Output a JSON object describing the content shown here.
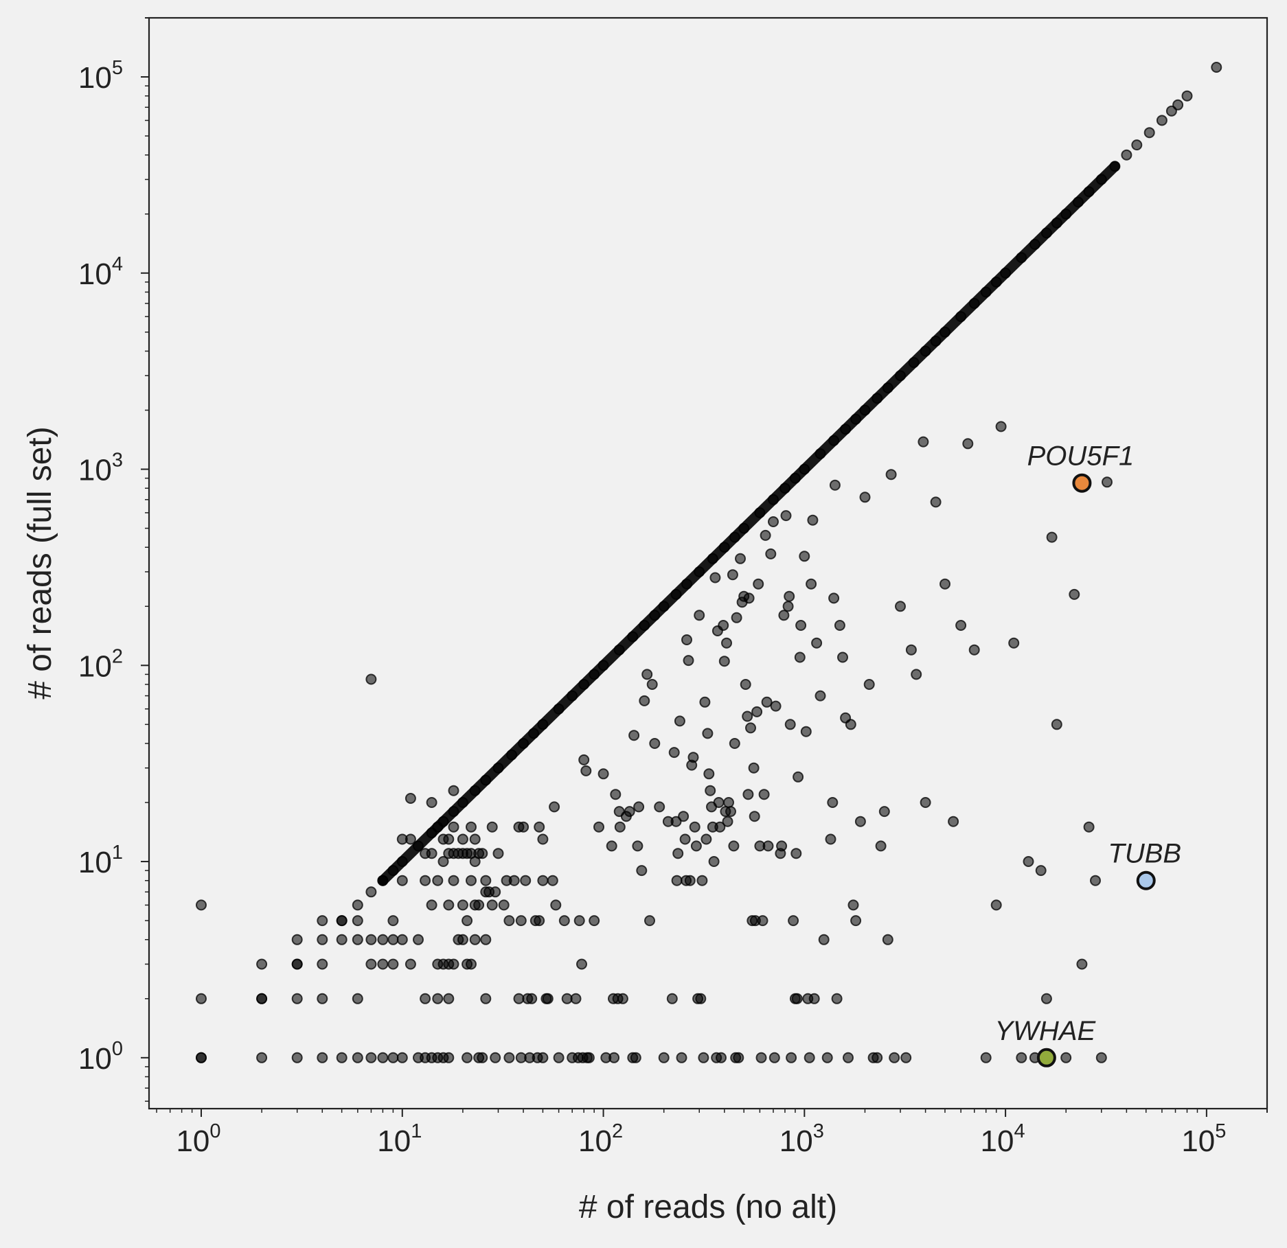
{
  "chart_data": {
    "type": "scatter",
    "title": "",
    "xlabel": "# of reads (no alt)",
    "ylabel": "# of reads (full set)",
    "xscale": "log",
    "yscale": "log",
    "xlim": [
      0.55,
      200000
    ],
    "ylim": [
      0.55,
      200000
    ],
    "grid": false,
    "xticks": [
      {
        "base": "10",
        "exp": "0"
      },
      {
        "base": "10",
        "exp": "1"
      },
      {
        "base": "10",
        "exp": "2"
      },
      {
        "base": "10",
        "exp": "3"
      },
      {
        "base": "10",
        "exp": "4"
      },
      {
        "base": "10",
        "exp": "5"
      }
    ],
    "yticks": [
      {
        "base": "10",
        "exp": "0"
      },
      {
        "base": "10",
        "exp": "1"
      },
      {
        "base": "10",
        "exp": "2"
      },
      {
        "base": "10",
        "exp": "3"
      },
      {
        "base": "10",
        "exp": "4"
      },
      {
        "base": "10",
        "exp": "5"
      }
    ],
    "point_color": "#000000",
    "diagonal_points": [
      [
        1,
        1
      ],
      [
        2,
        2
      ],
      [
        3,
        3
      ],
      [
        4,
        4
      ],
      [
        5,
        5
      ],
      [
        6,
        6
      ],
      [
        7,
        7
      ],
      [
        8,
        8
      ],
      [
        9,
        9
      ],
      [
        10,
        10
      ],
      [
        12,
        12
      ],
      [
        14,
        14
      ],
      [
        16,
        16
      ],
      [
        18,
        18
      ],
      [
        20,
        20
      ],
      [
        23,
        23
      ],
      [
        26,
        26
      ],
      [
        30,
        30
      ],
      [
        35,
        35
      ],
      [
        40,
        40
      ],
      [
        45,
        45
      ],
      [
        50,
        50
      ],
      [
        60,
        60
      ],
      [
        70,
        70
      ],
      [
        80,
        80
      ],
      [
        90,
        90
      ],
      [
        100,
        100
      ],
      [
        120,
        120
      ],
      [
        140,
        140
      ],
      [
        160,
        160
      ],
      [
        180,
        180
      ],
      [
        200,
        200
      ],
      [
        230,
        230
      ],
      [
        260,
        260
      ],
      [
        300,
        300
      ],
      [
        350,
        350
      ],
      [
        400,
        400
      ],
      [
        450,
        450
      ],
      [
        500,
        500
      ],
      [
        600,
        600
      ],
      [
        700,
        700
      ],
      [
        800,
        800
      ],
      [
        900,
        900
      ],
      [
        1000,
        1000
      ],
      [
        1200,
        1200
      ],
      [
        1400,
        1400
      ],
      [
        1600,
        1600
      ],
      [
        1800,
        1800
      ],
      [
        2000,
        2000
      ],
      [
        2300,
        2300
      ],
      [
        2600,
        2600
      ],
      [
        3000,
        3000
      ],
      [
        3500,
        3500
      ],
      [
        4000,
        4000
      ],
      [
        4500,
        4500
      ],
      [
        5000,
        5000
      ],
      [
        6000,
        6000
      ],
      [
        7000,
        7000
      ],
      [
        8000,
        8000
      ],
      [
        9000,
        9000
      ],
      [
        10000,
        10000
      ],
      [
        12000,
        12000
      ],
      [
        14000,
        14000
      ],
      [
        16000,
        16000
      ],
      [
        18000,
        18000
      ],
      [
        20000,
        20000
      ],
      [
        23000,
        23000
      ],
      [
        26000,
        26000
      ],
      [
        30000,
        30000
      ],
      [
        35000,
        35000
      ],
      [
        40000,
        40000
      ],
      [
        45000,
        45000
      ],
      [
        52000,
        52000
      ],
      [
        60000,
        60000
      ],
      [
        67000,
        67000
      ],
      [
        72000,
        72000
      ],
      [
        80000,
        80000
      ],
      [
        112000,
        112000
      ]
    ],
    "scatter_points": [
      [
        7,
        85
      ],
      [
        1,
        6
      ],
      [
        1,
        2
      ],
      [
        1,
        1
      ],
      [
        2,
        3
      ],
      [
        2,
        2
      ],
      [
        2,
        1
      ],
      [
        3,
        4
      ],
      [
        3,
        3
      ],
      [
        3,
        2
      ],
      [
        3,
        1
      ],
      [
        4,
        5
      ],
      [
        4,
        3
      ],
      [
        4,
        2
      ],
      [
        4,
        1
      ],
      [
        5,
        5
      ],
      [
        5,
        4
      ],
      [
        5,
        1
      ],
      [
        6,
        5
      ],
      [
        6,
        4
      ],
      [
        6,
        2
      ],
      [
        6,
        1
      ],
      [
        7,
        4
      ],
      [
        7,
        3
      ],
      [
        7,
        1
      ],
      [
        8,
        8
      ],
      [
        8,
        4
      ],
      [
        8,
        3
      ],
      [
        8,
        1
      ],
      [
        9,
        5
      ],
      [
        9,
        4
      ],
      [
        9,
        3
      ],
      [
        9,
        1
      ],
      [
        10,
        13
      ],
      [
        10,
        8
      ],
      [
        10,
        4
      ],
      [
        10,
        1
      ],
      [
        11,
        21
      ],
      [
        11,
        13
      ],
      [
        11,
        3
      ],
      [
        12,
        4
      ],
      [
        12,
        1
      ],
      [
        13,
        11
      ],
      [
        13,
        8
      ],
      [
        13,
        2
      ],
      [
        13,
        1
      ],
      [
        14,
        20
      ],
      [
        14,
        11
      ],
      [
        14,
        6
      ],
      [
        14,
        1
      ],
      [
        15,
        15
      ],
      [
        15,
        8
      ],
      [
        15,
        3
      ],
      [
        15,
        2
      ],
      [
        15,
        1
      ],
      [
        16,
        13
      ],
      [
        16,
        10
      ],
      [
        16,
        3
      ],
      [
        16,
        1
      ],
      [
        17,
        13
      ],
      [
        17,
        11
      ],
      [
        17,
        6
      ],
      [
        17,
        3
      ],
      [
        17,
        2
      ],
      [
        17,
        1
      ],
      [
        18,
        23
      ],
      [
        18,
        15
      ],
      [
        18,
        11
      ],
      [
        18,
        8
      ],
      [
        18,
        3
      ],
      [
        19,
        11
      ],
      [
        19,
        4
      ],
      [
        20,
        13
      ],
      [
        20,
        11
      ],
      [
        20,
        6
      ],
      [
        20,
        4
      ],
      [
        21,
        11
      ],
      [
        21,
        5
      ],
      [
        21,
        3
      ],
      [
        21,
        1
      ],
      [
        22,
        15
      ],
      [
        22,
        11
      ],
      [
        22,
        8
      ],
      [
        22,
        3
      ],
      [
        23,
        13
      ],
      [
        23,
        10
      ],
      [
        23,
        6
      ],
      [
        23,
        4
      ],
      [
        24,
        11
      ],
      [
        24,
        6
      ],
      [
        24,
        1
      ],
      [
        25,
        11
      ],
      [
        25,
        1
      ],
      [
        26,
        8
      ],
      [
        26,
        7
      ],
      [
        26,
        4
      ],
      [
        26,
        2
      ],
      [
        27,
        7
      ],
      [
        28,
        15
      ],
      [
        28,
        6
      ],
      [
        29,
        7
      ],
      [
        29,
        1
      ],
      [
        30,
        11
      ],
      [
        32,
        6
      ],
      [
        33,
        8
      ],
      [
        34,
        5
      ],
      [
        34,
        1
      ],
      [
        36,
        8
      ],
      [
        38,
        15
      ],
      [
        38,
        2
      ],
      [
        39,
        5
      ],
      [
        39,
        1
      ],
      [
        40,
        15
      ],
      [
        41,
        8
      ],
      [
        42,
        2
      ],
      [
        43,
        1
      ],
      [
        44,
        2
      ],
      [
        46,
        5
      ],
      [
        47,
        1
      ],
      [
        48,
        15
      ],
      [
        48,
        5
      ],
      [
        50,
        13
      ],
      [
        50,
        8
      ],
      [
        50,
        1
      ],
      [
        52,
        2
      ],
      [
        53,
        2
      ],
      [
        56,
        8
      ],
      [
        57,
        19
      ],
      [
        58,
        6
      ],
      [
        60,
        1
      ],
      [
        64,
        5
      ],
      [
        66,
        2
      ],
      [
        70,
        1
      ],
      [
        73,
        2
      ],
      [
        75,
        1
      ],
      [
        76,
        5
      ],
      [
        78,
        3
      ],
      [
        79,
        1
      ],
      [
        80,
        33
      ],
      [
        82,
        29
      ],
      [
        83,
        1
      ],
      [
        85,
        1
      ],
      [
        90,
        5
      ],
      [
        95,
        15
      ],
      [
        100,
        28
      ],
      [
        103,
        1
      ],
      [
        110,
        12
      ],
      [
        112,
        2
      ],
      [
        113,
        1
      ],
      [
        115,
        22
      ],
      [
        118,
        2
      ],
      [
        120,
        18
      ],
      [
        121,
        15
      ],
      [
        125,
        2
      ],
      [
        130,
        17
      ],
      [
        135,
        18
      ],
      [
        140,
        1
      ],
      [
        142,
        44
      ],
      [
        145,
        1
      ],
      [
        148,
        12
      ],
      [
        150,
        19
      ],
      [
        155,
        9
      ],
      [
        160,
        66
      ],
      [
        165,
        90
      ],
      [
        170,
        5
      ],
      [
        175,
        80
      ],
      [
        180,
        40
      ],
      [
        190,
        19
      ],
      [
        200,
        1
      ],
      [
        210,
        16
      ],
      [
        220,
        2
      ],
      [
        225,
        36
      ],
      [
        230,
        16
      ],
      [
        232,
        8
      ],
      [
        235,
        11
      ],
      [
        240,
        52
      ],
      [
        245,
        1
      ],
      [
        250,
        17
      ],
      [
        255,
        13
      ],
      [
        258,
        8
      ],
      [
        260,
        135
      ],
      [
        265,
        106
      ],
      [
        270,
        8
      ],
      [
        275,
        31
      ],
      [
        280,
        34
      ],
      [
        285,
        15
      ],
      [
        290,
        12
      ],
      [
        295,
        2
      ],
      [
        300,
        180
      ],
      [
        305,
        2
      ],
      [
        310,
        8
      ],
      [
        315,
        1
      ],
      [
        320,
        65
      ],
      [
        325,
        13
      ],
      [
        330,
        45
      ],
      [
        335,
        28
      ],
      [
        340,
        23
      ],
      [
        345,
        19
      ],
      [
        350,
        15
      ],
      [
        355,
        10
      ],
      [
        360,
        280
      ],
      [
        365,
        1
      ],
      [
        370,
        150
      ],
      [
        375,
        20
      ],
      [
        380,
        15
      ],
      [
        385,
        1
      ],
      [
        395,
        160
      ],
      [
        400,
        105
      ],
      [
        405,
        18
      ],
      [
        410,
        130
      ],
      [
        415,
        16
      ],
      [
        420,
        20
      ],
      [
        430,
        18
      ],
      [
        440,
        290
      ],
      [
        445,
        12
      ],
      [
        450,
        40
      ],
      [
        455,
        1
      ],
      [
        460,
        175
      ],
      [
        470,
        1
      ],
      [
        480,
        350
      ],
      [
        490,
        210
      ],
      [
        500,
        225
      ],
      [
        510,
        80
      ],
      [
        520,
        55
      ],
      [
        525,
        22
      ],
      [
        530,
        220
      ],
      [
        540,
        48
      ],
      [
        550,
        5
      ],
      [
        560,
        30
      ],
      [
        565,
        17
      ],
      [
        570,
        5
      ],
      [
        580,
        58
      ],
      [
        590,
        260
      ],
      [
        600,
        12
      ],
      [
        610,
        1
      ],
      [
        620,
        5
      ],
      [
        630,
        22
      ],
      [
        640,
        460
      ],
      [
        650,
        65
      ],
      [
        660,
        12
      ],
      [
        680,
        370
      ],
      [
        700,
        540
      ],
      [
        710,
        1
      ],
      [
        720,
        62
      ],
      [
        760,
        11
      ],
      [
        770,
        12
      ],
      [
        790,
        180
      ],
      [
        810,
        580
      ],
      [
        830,
        200
      ],
      [
        840,
        225
      ],
      [
        850,
        50
      ],
      [
        860,
        1
      ],
      [
        880,
        5
      ],
      [
        900,
        2
      ],
      [
        910,
        11
      ],
      [
        920,
        2
      ],
      [
        930,
        27
      ],
      [
        950,
        110
      ],
      [
        960,
        160
      ],
      [
        1000,
        360
      ],
      [
        1020,
        46
      ],
      [
        1040,
        2
      ],
      [
        1060,
        1
      ],
      [
        1080,
        260
      ],
      [
        1100,
        550
      ],
      [
        1120,
        2
      ],
      [
        1150,
        130
      ],
      [
        1200,
        70
      ],
      [
        1250,
        4
      ],
      [
        1300,
        1
      ],
      [
        1350,
        13
      ],
      [
        1380,
        20
      ],
      [
        1400,
        220
      ],
      [
        1420,
        830
      ],
      [
        1450,
        2
      ],
      [
        1500,
        160
      ],
      [
        1550,
        110
      ],
      [
        1600,
        54
      ],
      [
        1650,
        1
      ],
      [
        1700,
        50
      ],
      [
        1750,
        6
      ],
      [
        1800,
        5
      ],
      [
        1900,
        16
      ],
      [
        2000,
        720
      ],
      [
        2100,
        80
      ],
      [
        2200,
        1
      ],
      [
        2300,
        1
      ],
      [
        2400,
        12
      ],
      [
        2500,
        18
      ],
      [
        2600,
        4
      ],
      [
        2700,
        940
      ],
      [
        2800,
        1
      ],
      [
        3000,
        200
      ],
      [
        3200,
        1
      ],
      [
        3400,
        120
      ],
      [
        3600,
        90
      ],
      [
        3900,
        1380
      ],
      [
        4000,
        20
      ],
      [
        4500,
        680
      ],
      [
        5000,
        260
      ],
      [
        5500,
        16
      ],
      [
        6000,
        160
      ],
      [
        6500,
        1350
      ],
      [
        7000,
        120
      ],
      [
        8000,
        1
      ],
      [
        9000,
        6
      ],
      [
        9500,
        1650
      ],
      [
        11000,
        130
      ],
      [
        12000,
        1
      ],
      [
        13000,
        10
      ],
      [
        14000,
        1
      ],
      [
        15000,
        9
      ],
      [
        16000,
        2
      ],
      [
        17000,
        450
      ],
      [
        18000,
        50
      ],
      [
        20000,
        1
      ],
      [
        22000,
        230
      ],
      [
        24000,
        3
      ],
      [
        26000,
        15
      ],
      [
        28000,
        8
      ],
      [
        30000,
        1
      ],
      [
        32000,
        860
      ]
    ],
    "highlights": [
      {
        "label": "POU5F1",
        "x": 24000,
        "y": 850,
        "color": "#e8883c"
      },
      {
        "label": "TUBB",
        "x": 50000,
        "y": 8,
        "color": "#aac8ea"
      },
      {
        "label": "YWHAE",
        "x": 16000,
        "y": 1,
        "color": "#92ab3c"
      }
    ]
  }
}
